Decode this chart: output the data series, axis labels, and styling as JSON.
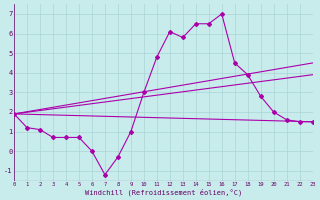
{
  "xlabel": "Windchill (Refroidissement éolien,°C)",
  "bg_color": "#c8ecec",
  "grid_color": "#aad4d4",
  "line_color": "#aa00aa",
  "text_color": "#660066",
  "xlim": [
    0,
    23
  ],
  "ylim": [
    -1.5,
    7.5
  ],
  "yticks": [
    -1,
    0,
    1,
    2,
    3,
    4,
    5,
    6,
    7
  ],
  "xticks": [
    0,
    1,
    2,
    3,
    4,
    5,
    6,
    7,
    8,
    9,
    10,
    11,
    12,
    13,
    14,
    15,
    16,
    17,
    18,
    19,
    20,
    21,
    22,
    23
  ],
  "curve1_x": [
    0,
    1,
    2,
    3,
    4,
    5,
    6,
    7,
    8,
    9,
    10,
    11,
    12,
    13,
    14,
    15,
    16,
    17,
    18,
    19,
    20,
    21,
    22,
    23
  ],
  "curve1_y": [
    1.9,
    1.2,
    1.1,
    0.7,
    0.7,
    0.7,
    0.0,
    -1.2,
    -0.3,
    1.0,
    3.0,
    4.8,
    6.1,
    5.8,
    6.5,
    6.5,
    7.0,
    4.5,
    3.9,
    2.8,
    2.0,
    1.6,
    1.5,
    1.5
  ],
  "line1_x": [
    0,
    23
  ],
  "line1_y": [
    1.9,
    1.5
  ],
  "line2_x": [
    0,
    23
  ],
  "line2_y": [
    1.9,
    3.9
  ],
  "line3_x": [
    0,
    23
  ],
  "line3_y": [
    1.9,
    4.5
  ]
}
